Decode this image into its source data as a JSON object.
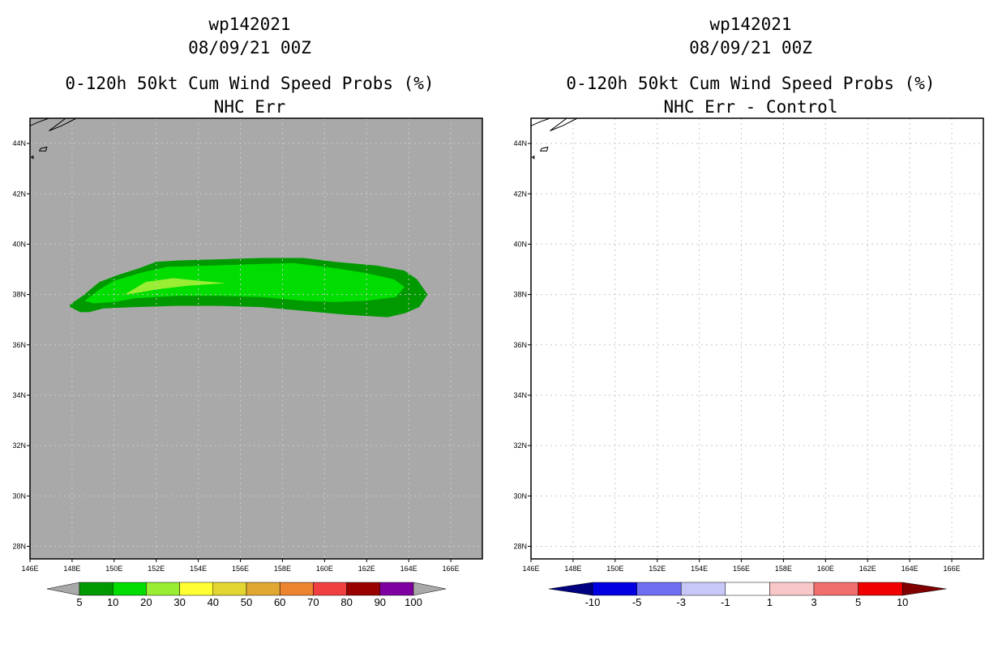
{
  "left_panel": {
    "storm_id": "wp142021",
    "datetime": "08/09/21 00Z",
    "product": "0-120h 50kt Cum Wind Speed Probs (%)",
    "subtitle": "NHC Err"
  },
  "right_panel": {
    "storm_id": "wp142021",
    "datetime": "08/09/21 00Z",
    "product": "0-120h 50kt Cum Wind Speed Probs (%)",
    "subtitle": "NHC Err - Control"
  },
  "colors": {
    "map_background": "#a9a9a9",
    "grid": "#c8c8c8",
    "prob_5_10": "#009900",
    "prob_10_20": "#00dd00",
    "prob_20_30": "#99ee33"
  },
  "chart_data": [
    {
      "type": "heatmap",
      "title": "0-120h 50kt Cum Wind Speed Probs (%) — NHC Err",
      "xlim": [
        146,
        167.5
      ],
      "ylim": [
        27.5,
        45
      ],
      "x_ticks": [
        146,
        148,
        150,
        152,
        154,
        156,
        158,
        160,
        162,
        164,
        166
      ],
      "x_tick_labels": [
        "146E",
        "148E",
        "150E",
        "152E",
        "154E",
        "156E",
        "158E",
        "160E",
        "162E",
        "164E",
        "166E"
      ],
      "y_ticks": [
        28,
        30,
        32,
        34,
        36,
        38,
        40,
        42,
        44
      ],
      "y_tick_labels": [
        "28N",
        "30N",
        "32N",
        "34N",
        "36N",
        "38N",
        "40N",
        "42N",
        "44N"
      ],
      "contours": [
        {
          "level": "5-10",
          "color": "#009900",
          "polygon": [
            [
              147.9,
              37.6
            ],
            [
              148.5,
              37.95
            ],
            [
              149.3,
              38.5
            ],
            [
              150.1,
              38.75
            ],
            [
              151.2,
              39.05
            ],
            [
              152.0,
              39.3
            ],
            [
              153.0,
              39.35
            ],
            [
              155.0,
              39.4
            ],
            [
              157.0,
              39.45
            ],
            [
              159.0,
              39.45
            ],
            [
              160.5,
              39.3
            ],
            [
              162.5,
              39.15
            ],
            [
              163.8,
              38.95
            ],
            [
              164.4,
              38.6
            ],
            [
              164.9,
              38.0
            ],
            [
              164.5,
              37.5
            ],
            [
              163.8,
              37.25
            ],
            [
              163.0,
              37.1
            ],
            [
              161.0,
              37.2
            ],
            [
              159.0,
              37.35
            ],
            [
              157.0,
              37.5
            ],
            [
              155.0,
              37.55
            ],
            [
              153.0,
              37.55
            ],
            [
              151.0,
              37.5
            ],
            [
              149.5,
              37.45
            ],
            [
              148.8,
              37.3
            ],
            [
              148.4,
              37.3
            ],
            [
              147.9,
              37.5
            ]
          ]
        },
        {
          "level": "10-20",
          "color": "#00dd00",
          "polygon": [
            [
              148.6,
              37.75
            ],
            [
              149.3,
              38.2
            ],
            [
              150.0,
              38.55
            ],
            [
              151.2,
              38.85
            ],
            [
              152.5,
              39.1
            ],
            [
              154.5,
              39.15
            ],
            [
              156.5,
              39.2
            ],
            [
              158.5,
              39.25
            ],
            [
              160.5,
              39.05
            ],
            [
              162.0,
              38.85
            ],
            [
              163.3,
              38.6
            ],
            [
              163.8,
              38.3
            ],
            [
              163.4,
              37.9
            ],
            [
              162.0,
              37.75
            ],
            [
              160.5,
              37.7
            ],
            [
              159.0,
              37.75
            ],
            [
              157.0,
              37.9
            ],
            [
              155.0,
              37.95
            ],
            [
              153.0,
              37.95
            ],
            [
              151.0,
              37.85
            ],
            [
              150.0,
              37.7
            ],
            [
              149.0,
              37.65
            ]
          ]
        },
        {
          "level": "20-30",
          "color": "#99ee33",
          "polygon": [
            [
              150.5,
              38.0
            ],
            [
              151.5,
              38.5
            ],
            [
              152.8,
              38.65
            ],
            [
              154.0,
              38.55
            ],
            [
              155.3,
              38.45
            ],
            [
              153.5,
              38.35
            ],
            [
              152.0,
              38.2
            ],
            [
              151.0,
              38.05
            ]
          ]
        }
      ],
      "colorbar": {
        "labels": [
          "5",
          "10",
          "20",
          "30",
          "40",
          "50",
          "60",
          "70",
          "80",
          "90",
          "100"
        ],
        "colors": [
          "#009900",
          "#00dd00",
          "#99ee33",
          "#ffff33",
          "#e3d633",
          "#e0a830",
          "#ec8430",
          "#f04040",
          "#990000",
          "#7f00a0"
        ],
        "under_color": "#a9a9a9",
        "over_color": "#a9a9a9"
      }
    },
    {
      "type": "heatmap",
      "title": "0-120h 50kt Cum Wind Speed Probs (%) — NHC Err - Control",
      "xlim": [
        146,
        167.5
      ],
      "ylim": [
        27.5,
        45
      ],
      "x_ticks": [
        146,
        148,
        150,
        152,
        154,
        156,
        158,
        160,
        162,
        164,
        166
      ],
      "x_tick_labels": [
        "146E",
        "148E",
        "150E",
        "152E",
        "154E",
        "156E",
        "158E",
        "160E",
        "162E",
        "164E",
        "166E"
      ],
      "y_ticks": [
        28,
        30,
        32,
        34,
        36,
        38,
        40,
        42,
        44
      ],
      "y_tick_labels": [
        "28N",
        "30N",
        "32N",
        "34N",
        "36N",
        "38N",
        "40N",
        "42N",
        "44N"
      ],
      "contours": [],
      "grid": true,
      "colorbar": {
        "labels": [
          "-10",
          "-5",
          "-3",
          "-1",
          "1",
          "3",
          "5",
          "10"
        ],
        "colors": [
          "#0000e0",
          "#6e6ef0",
          "#c8c8f8",
          "#ffffff",
          "#f8c8c8",
          "#f06e6e",
          "#f00000"
        ],
        "under_color": "#000080",
        "over_color": "#800000"
      }
    }
  ]
}
